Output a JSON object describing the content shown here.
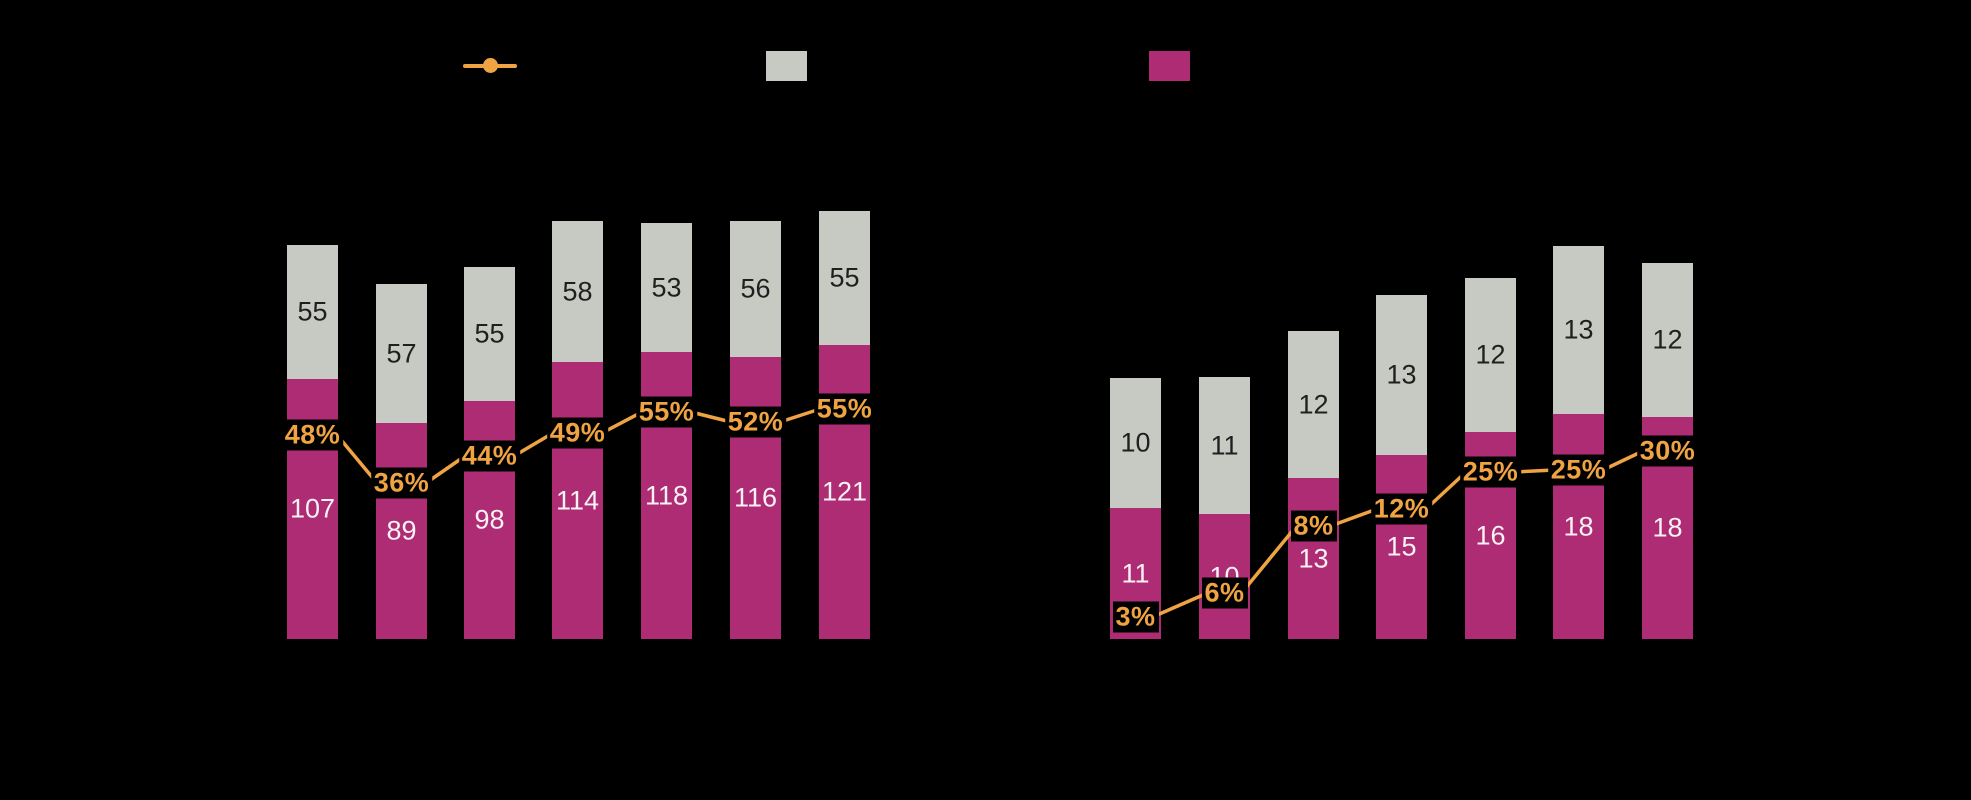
{
  "colors": {
    "background": "#000000",
    "magenta": "#ae2c73",
    "gray": "#c7cac3",
    "orange": "#f0a342",
    "label_on_magenta": "#f8f2f5",
    "label_on_gray": "#1f1f1f"
  },
  "legend": {
    "items": [
      {
        "name": "percent-line",
        "swatch": "line-with-dot",
        "color": "#f0a342"
      },
      {
        "name": "gray-top-series",
        "swatch": "square",
        "color": "#c7cac3"
      },
      {
        "name": "magenta-bottom-series",
        "swatch": "square",
        "color": "#ae2c73"
      }
    ]
  },
  "chart_data": [
    {
      "type": "bar",
      "subtype": "stacked-bar-with-percent-line",
      "title": "",
      "categories": [
        "",
        "",
        "",
        "",
        "",
        "",
        ""
      ],
      "series": [
        {
          "name": "magenta-bottom",
          "values": [
            107,
            89,
            98,
            114,
            118,
            116,
            121
          ]
        },
        {
          "name": "gray-top",
          "values": [
            55,
            57,
            55,
            58,
            53,
            56,
            55
          ]
        }
      ],
      "line_series": {
        "name": "percent-line",
        "unit": "%",
        "values": [
          48,
          36,
          44,
          49,
          55,
          52,
          55
        ]
      },
      "legend_position": "top",
      "gridlines": false,
      "value_labels": "inside-segments"
    },
    {
      "type": "bar",
      "subtype": "stacked-bar-with-percent-line",
      "title": "",
      "categories": [
        "",
        "",
        "",
        "",
        "",
        "",
        ""
      ],
      "series": [
        {
          "name": "magenta-bottom",
          "values": [
            11,
            10,
            13,
            15,
            16,
            18,
            18
          ]
        },
        {
          "name": "gray-top",
          "values": [
            10,
            11,
            12,
            13,
            12,
            13,
            12
          ]
        }
      ],
      "line_series": {
        "name": "percent-line",
        "unit": "%",
        "values": [
          3,
          6,
          8,
          12,
          25,
          25,
          30
        ]
      },
      "legend_position": "top",
      "gridlines": false,
      "value_labels": "inside-segments"
    }
  ]
}
